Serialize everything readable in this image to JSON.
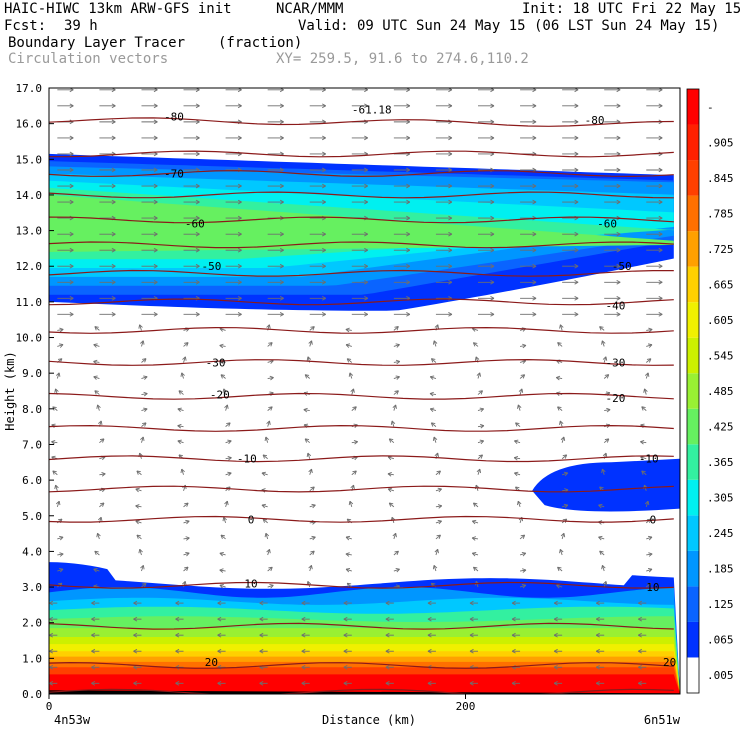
{
  "header": {
    "model": "HAIC-HIWC 13km ARW-GFS init",
    "org": "NCAR/MMM",
    "init": "Init: 18 UTC Fri 22 May 15",
    "fcst_label": "Fcst:",
    "fcst_value": "39 h",
    "valid": "Valid: 09 UTC Sun 24 May 15 (06 LST Sun 24 May 15)",
    "field": "Boundary Layer Tracer",
    "units": "(fraction)",
    "vectors": "Circulation vectors",
    "xy": "XY= 259.5, 91.6 to 274.6,110.2"
  },
  "chart_data": {
    "type": "heatmap",
    "title": "Boundary Layer Tracer (fraction)",
    "xlabel": "Distance (km)",
    "ylabel": "Height (km)",
    "xlim": [
      0,
      303
    ],
    "ylim": [
      0,
      17
    ],
    "x_ticks": [
      "0",
      "200"
    ],
    "x_end_labels": {
      "left": "4n53w",
      "right": "6n51w"
    },
    "y_ticks": [
      "0.0",
      "1.0",
      "2.0",
      "3.0",
      "4.0",
      "5.0",
      "6.0",
      "7.0",
      "8.0",
      "9.0",
      "10.0",
      "11.0",
      "12.0",
      "13.0",
      "14.0",
      "15.0",
      "16.0",
      "17.0"
    ],
    "colorbar": {
      "labels": [
        ".005",
        ".065",
        ".125",
        ".185",
        ".245",
        ".305",
        ".365",
        ".425",
        ".485",
        ".545",
        ".605",
        ".665",
        ".725",
        ".785",
        ".845",
        ".905",
        "-"
      ],
      "colors": [
        "#ffffff",
        "#0032ff",
        "#0a64ff",
        "#0096ff",
        "#00c8ff",
        "#00f0f0",
        "#33f0a0",
        "#66f060",
        "#99f033",
        "#ccf000",
        "#f0f000",
        "#ffd000",
        "#ffa000",
        "#ff7000",
        "#ff4000",
        "#ff2000",
        "#ff0000"
      ]
    },
    "isotherm_color": "#8b1a1a",
    "isotherm_labels": [
      {
        "text": "-80",
        "x": 60,
        "y": 16.2
      },
      {
        "text": "-80",
        "x": 262,
        "y": 16.1
      },
      {
        "text": "-61.18",
        "x": 155,
        "y": 16.4
      },
      {
        "text": "-70",
        "x": 60,
        "y": 14.6
      },
      {
        "text": "-60",
        "x": 70,
        "y": 13.2
      },
      {
        "text": "-60",
        "x": 268,
        "y": 13.2
      },
      {
        "text": "-50",
        "x": 78,
        "y": 12.0
      },
      {
        "text": "-50",
        "x": 275,
        "y": 12.0
      },
      {
        "text": "-40",
        "x": 272,
        "y": 10.9
      },
      {
        "text": "-30",
        "x": 80,
        "y": 9.3
      },
      {
        "text": "-30",
        "x": 272,
        "y": 9.3
      },
      {
        "text": "-20",
        "x": 82,
        "y": 8.4
      },
      {
        "text": "-20",
        "x": 272,
        "y": 8.3
      },
      {
        "text": "-10",
        "x": 95,
        "y": 6.6
      },
      {
        "text": "-10",
        "x": 288,
        "y": 6.6
      },
      {
        "text": "0",
        "x": 97,
        "y": 4.9
      },
      {
        "text": "0",
        "x": 290,
        "y": 4.9
      },
      {
        "text": "10",
        "x": 97,
        "y": 3.1
      },
      {
        "text": "10",
        "x": 290,
        "y": 3.0
      },
      {
        "text": "20",
        "x": 78,
        "y": 0.9
      },
      {
        "text": "20",
        "x": 298,
        "y": 0.9
      }
    ]
  }
}
